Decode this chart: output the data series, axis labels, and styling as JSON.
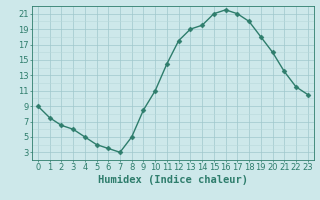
{
  "x": [
    0,
    1,
    2,
    3,
    4,
    5,
    6,
    7,
    8,
    9,
    10,
    11,
    12,
    13,
    14,
    15,
    16,
    17,
    18,
    19,
    20,
    21,
    22,
    23
  ],
  "y": [
    9.0,
    7.5,
    6.5,
    6.0,
    5.0,
    4.0,
    3.5,
    3.0,
    5.0,
    8.5,
    11.0,
    14.5,
    17.5,
    19.0,
    19.5,
    21.0,
    21.5,
    21.0,
    20.0,
    18.0,
    16.0,
    13.5,
    11.5,
    10.5
  ],
  "xlabel": "Humidex (Indice chaleur)",
  "xlim": [
    -0.5,
    23.5
  ],
  "ylim": [
    2,
    22
  ],
  "yticks": [
    3,
    5,
    7,
    9,
    11,
    13,
    15,
    17,
    19,
    21
  ],
  "xticks": [
    0,
    1,
    2,
    3,
    4,
    5,
    6,
    7,
    8,
    9,
    10,
    11,
    12,
    13,
    14,
    15,
    16,
    17,
    18,
    19,
    20,
    21,
    22,
    23
  ],
  "line_color": "#2e7d6c",
  "marker": "D",
  "markersize": 2.5,
  "bg_color": "#cde8ea",
  "grid_minor_color": "#b8d8da",
  "grid_major_color": "#a0c8cc",
  "xlabel_fontsize": 7.5,
  "tick_fontsize": 6,
  "linewidth": 1.0
}
